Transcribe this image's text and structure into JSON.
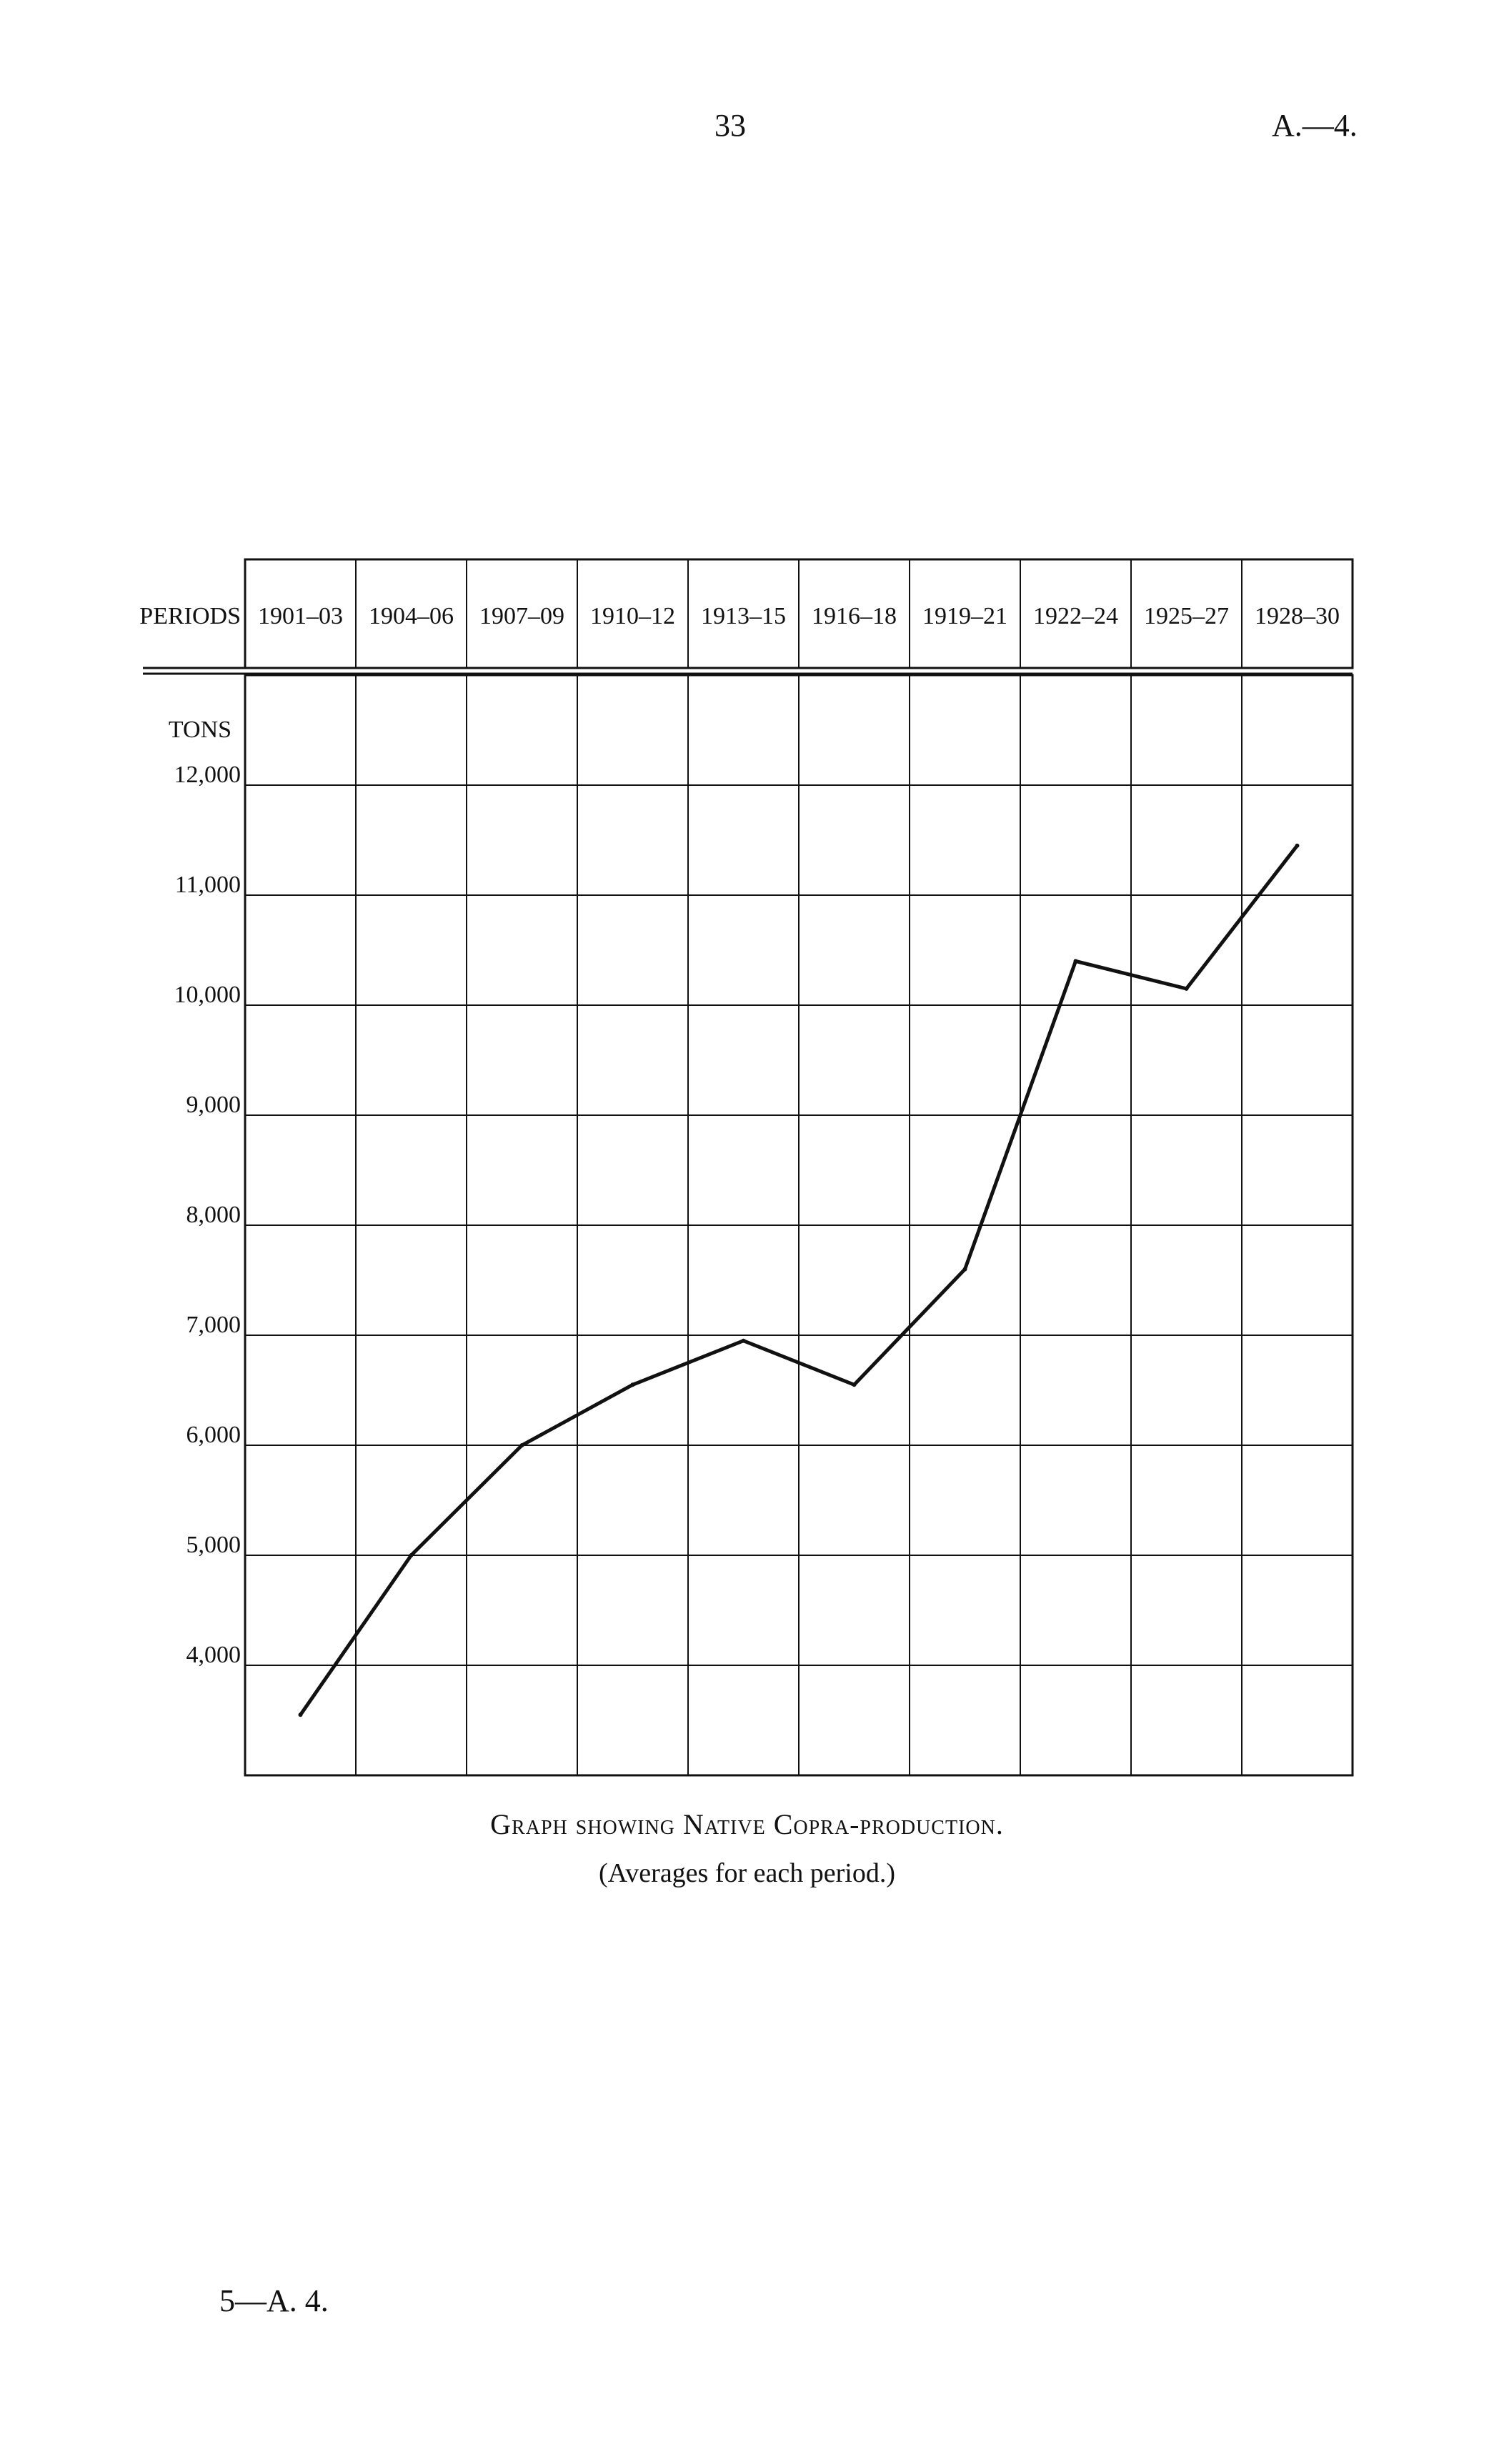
{
  "header": {
    "page_number": "33",
    "page_code": "A.—4."
  },
  "footer": {
    "code": "5—A. 4."
  },
  "chart_data": {
    "type": "line",
    "title": "Graph showing Native Copra-production.",
    "subtitle": "(Averages for each period.)",
    "xlabel": "PERIODS",
    "ylabel": "TONS",
    "categories": [
      "1901–03",
      "1904–06",
      "1907–09",
      "1910–12",
      "1913–15",
      "1916–18",
      "1919–21",
      "1922–24",
      "1925–27",
      "1928–30"
    ],
    "values": [
      3550,
      5000,
      6000,
      6550,
      6950,
      6550,
      7600,
      10400,
      10150,
      11450
    ],
    "ylim": [
      3000,
      13000
    ],
    "yticks": [
      4000,
      5000,
      6000,
      7000,
      8000,
      9000,
      10000,
      11000,
      12000
    ],
    "ytick_labels": [
      "4,000",
      "5,000",
      "6,000",
      "7,000",
      "8,000",
      "9,000",
      "10,000",
      "11,000",
      "12,000"
    ],
    "grid": true,
    "line_color": "#111111"
  }
}
